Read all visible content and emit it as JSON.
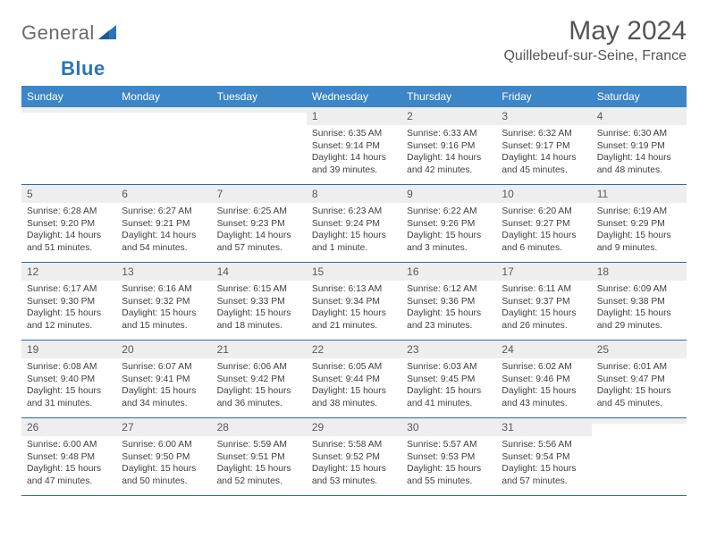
{
  "brand": {
    "part1": "General",
    "part2": "Blue"
  },
  "title": "May 2024",
  "location": "Quillebeuf-sur-Seine, France",
  "colors": {
    "header_bg": "#3c85c6",
    "daynum_bg": "#eeeeee",
    "week_border": "#2b6aa8",
    "text": "#333333",
    "brand_gray": "#6a6a6a",
    "brand_blue": "#2b74b8"
  },
  "dow": [
    "Sunday",
    "Monday",
    "Tuesday",
    "Wednesday",
    "Thursday",
    "Friday",
    "Saturday"
  ],
  "weeks": [
    [
      {
        "n": "",
        "sr": "",
        "ss": "",
        "dl1": "",
        "dl2": ""
      },
      {
        "n": "",
        "sr": "",
        "ss": "",
        "dl1": "",
        "dl2": ""
      },
      {
        "n": "",
        "sr": "",
        "ss": "",
        "dl1": "",
        "dl2": ""
      },
      {
        "n": "1",
        "sr": "Sunrise: 6:35 AM",
        "ss": "Sunset: 9:14 PM",
        "dl1": "Daylight: 14 hours",
        "dl2": "and 39 minutes."
      },
      {
        "n": "2",
        "sr": "Sunrise: 6:33 AM",
        "ss": "Sunset: 9:16 PM",
        "dl1": "Daylight: 14 hours",
        "dl2": "and 42 minutes."
      },
      {
        "n": "3",
        "sr": "Sunrise: 6:32 AM",
        "ss": "Sunset: 9:17 PM",
        "dl1": "Daylight: 14 hours",
        "dl2": "and 45 minutes."
      },
      {
        "n": "4",
        "sr": "Sunrise: 6:30 AM",
        "ss": "Sunset: 9:19 PM",
        "dl1": "Daylight: 14 hours",
        "dl2": "and 48 minutes."
      }
    ],
    [
      {
        "n": "5",
        "sr": "Sunrise: 6:28 AM",
        "ss": "Sunset: 9:20 PM",
        "dl1": "Daylight: 14 hours",
        "dl2": "and 51 minutes."
      },
      {
        "n": "6",
        "sr": "Sunrise: 6:27 AM",
        "ss": "Sunset: 9:21 PM",
        "dl1": "Daylight: 14 hours",
        "dl2": "and 54 minutes."
      },
      {
        "n": "7",
        "sr": "Sunrise: 6:25 AM",
        "ss": "Sunset: 9:23 PM",
        "dl1": "Daylight: 14 hours",
        "dl2": "and 57 minutes."
      },
      {
        "n": "8",
        "sr": "Sunrise: 6:23 AM",
        "ss": "Sunset: 9:24 PM",
        "dl1": "Daylight: 15 hours",
        "dl2": "and 1 minute."
      },
      {
        "n": "9",
        "sr": "Sunrise: 6:22 AM",
        "ss": "Sunset: 9:26 PM",
        "dl1": "Daylight: 15 hours",
        "dl2": "and 3 minutes."
      },
      {
        "n": "10",
        "sr": "Sunrise: 6:20 AM",
        "ss": "Sunset: 9:27 PM",
        "dl1": "Daylight: 15 hours",
        "dl2": "and 6 minutes."
      },
      {
        "n": "11",
        "sr": "Sunrise: 6:19 AM",
        "ss": "Sunset: 9:29 PM",
        "dl1": "Daylight: 15 hours",
        "dl2": "and 9 minutes."
      }
    ],
    [
      {
        "n": "12",
        "sr": "Sunrise: 6:17 AM",
        "ss": "Sunset: 9:30 PM",
        "dl1": "Daylight: 15 hours",
        "dl2": "and 12 minutes."
      },
      {
        "n": "13",
        "sr": "Sunrise: 6:16 AM",
        "ss": "Sunset: 9:32 PM",
        "dl1": "Daylight: 15 hours",
        "dl2": "and 15 minutes."
      },
      {
        "n": "14",
        "sr": "Sunrise: 6:15 AM",
        "ss": "Sunset: 9:33 PM",
        "dl1": "Daylight: 15 hours",
        "dl2": "and 18 minutes."
      },
      {
        "n": "15",
        "sr": "Sunrise: 6:13 AM",
        "ss": "Sunset: 9:34 PM",
        "dl1": "Daylight: 15 hours",
        "dl2": "and 21 minutes."
      },
      {
        "n": "16",
        "sr": "Sunrise: 6:12 AM",
        "ss": "Sunset: 9:36 PM",
        "dl1": "Daylight: 15 hours",
        "dl2": "and 23 minutes."
      },
      {
        "n": "17",
        "sr": "Sunrise: 6:11 AM",
        "ss": "Sunset: 9:37 PM",
        "dl1": "Daylight: 15 hours",
        "dl2": "and 26 minutes."
      },
      {
        "n": "18",
        "sr": "Sunrise: 6:09 AM",
        "ss": "Sunset: 9:38 PM",
        "dl1": "Daylight: 15 hours",
        "dl2": "and 29 minutes."
      }
    ],
    [
      {
        "n": "19",
        "sr": "Sunrise: 6:08 AM",
        "ss": "Sunset: 9:40 PM",
        "dl1": "Daylight: 15 hours",
        "dl2": "and 31 minutes."
      },
      {
        "n": "20",
        "sr": "Sunrise: 6:07 AM",
        "ss": "Sunset: 9:41 PM",
        "dl1": "Daylight: 15 hours",
        "dl2": "and 34 minutes."
      },
      {
        "n": "21",
        "sr": "Sunrise: 6:06 AM",
        "ss": "Sunset: 9:42 PM",
        "dl1": "Daylight: 15 hours",
        "dl2": "and 36 minutes."
      },
      {
        "n": "22",
        "sr": "Sunrise: 6:05 AM",
        "ss": "Sunset: 9:44 PM",
        "dl1": "Daylight: 15 hours",
        "dl2": "and 38 minutes."
      },
      {
        "n": "23",
        "sr": "Sunrise: 6:03 AM",
        "ss": "Sunset: 9:45 PM",
        "dl1": "Daylight: 15 hours",
        "dl2": "and 41 minutes."
      },
      {
        "n": "24",
        "sr": "Sunrise: 6:02 AM",
        "ss": "Sunset: 9:46 PM",
        "dl1": "Daylight: 15 hours",
        "dl2": "and 43 minutes."
      },
      {
        "n": "25",
        "sr": "Sunrise: 6:01 AM",
        "ss": "Sunset: 9:47 PM",
        "dl1": "Daylight: 15 hours",
        "dl2": "and 45 minutes."
      }
    ],
    [
      {
        "n": "26",
        "sr": "Sunrise: 6:00 AM",
        "ss": "Sunset: 9:48 PM",
        "dl1": "Daylight: 15 hours",
        "dl2": "and 47 minutes."
      },
      {
        "n": "27",
        "sr": "Sunrise: 6:00 AM",
        "ss": "Sunset: 9:50 PM",
        "dl1": "Daylight: 15 hours",
        "dl2": "and 50 minutes."
      },
      {
        "n": "28",
        "sr": "Sunrise: 5:59 AM",
        "ss": "Sunset: 9:51 PM",
        "dl1": "Daylight: 15 hours",
        "dl2": "and 52 minutes."
      },
      {
        "n": "29",
        "sr": "Sunrise: 5:58 AM",
        "ss": "Sunset: 9:52 PM",
        "dl1": "Daylight: 15 hours",
        "dl2": "and 53 minutes."
      },
      {
        "n": "30",
        "sr": "Sunrise: 5:57 AM",
        "ss": "Sunset: 9:53 PM",
        "dl1": "Daylight: 15 hours",
        "dl2": "and 55 minutes."
      },
      {
        "n": "31",
        "sr": "Sunrise: 5:56 AM",
        "ss": "Sunset: 9:54 PM",
        "dl1": "Daylight: 15 hours",
        "dl2": "and 57 minutes."
      },
      {
        "n": "",
        "sr": "",
        "ss": "",
        "dl1": "",
        "dl2": ""
      }
    ]
  ]
}
